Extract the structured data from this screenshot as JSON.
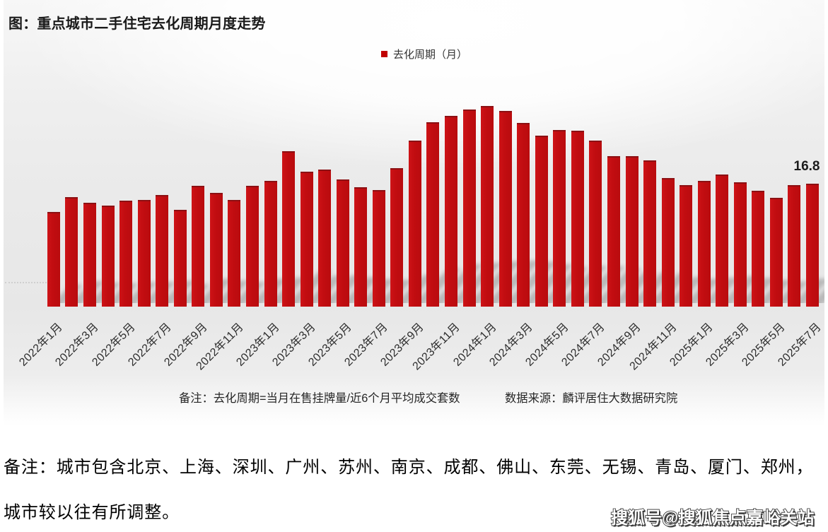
{
  "title": "图：重点城市二手住宅去化周期月度走势",
  "legend": {
    "label": "去化周期（月）",
    "color": "#c00000"
  },
  "notes": {
    "formula": "备注：去化周期=当月在售挂牌量/近6个月平均成交套数",
    "source": "数据来源：麟评居住大数据研究院"
  },
  "footnote": {
    "line1": "备注：城市包含北京、上海、深圳、广州、苏州、南京、成都、佛山、东莞、无锡、青岛、厦门、郑州，",
    "line2": "城市较以往有所调整。"
  },
  "watermark": "搜狐号@搜狐焦点嘉峪关站",
  "chart_data": {
    "type": "bar",
    "title": "图：重点城市二手住宅去化周期月度走势",
    "legend": "去化周期（月）",
    "bar_color": "#c20d11",
    "ylim": [
      0,
      29
    ],
    "grid": false,
    "last_value_label": "16.8",
    "categories": [
      "2022年1月",
      "2022年2月",
      "2022年3月",
      "2022年4月",
      "2022年5月",
      "2022年6月",
      "2022年7月",
      "2022年8月",
      "2022年9月",
      "2022年10月",
      "2022年11月",
      "2022年12月",
      "2023年1月",
      "2023年2月",
      "2023年3月",
      "2023年4月",
      "2023年5月",
      "2023年6月",
      "2023年7月",
      "2023年8月",
      "2023年9月",
      "2023年10月",
      "2023年11月",
      "2023年12月",
      "2024年1月",
      "2024年2月",
      "2024年3月",
      "2024年4月",
      "2024年5月",
      "2024年6月",
      "2024年7月",
      "2024年8月",
      "2024年9月",
      "2024年10月",
      "2024年11月",
      "2024年12月",
      "2025年1月",
      "2025年2月",
      "2025年3月",
      "2025年4月",
      "2025年5月",
      "2025年6月",
      "2025年7月"
    ],
    "values": [
      12.9,
      15.0,
      14.2,
      13.8,
      14.5,
      14.6,
      15.3,
      13.2,
      16.5,
      15.5,
      14.6,
      16.5,
      17.2,
      21.2,
      18.4,
      18.7,
      17.4,
      16.3,
      15.9,
      18.9,
      22.7,
      25.2,
      26.1,
      26.9,
      27.4,
      26.7,
      25.1,
      23.4,
      24.1,
      24.0,
      22.7,
      20.6,
      20.6,
      20.0,
      17.6,
      16.6,
      17.2,
      18.1,
      17.0,
      15.8,
      14.9,
      16.6,
      16.8
    ],
    "x_tick_labels": [
      "2022年1月",
      "2022年3月",
      "2022年5月",
      "2022年7月",
      "2022年9月",
      "2022年11月",
      "2023年1月",
      "2023年3月",
      "2023年5月",
      "2023年7月",
      "2023年9月",
      "2023年11月",
      "2024年1月",
      "2024年3月",
      "2024年5月",
      "2024年7月",
      "2024年9月",
      "2024年11月",
      "2025年1月",
      "2025年3月",
      "2025年5月",
      "2025年7月"
    ]
  }
}
